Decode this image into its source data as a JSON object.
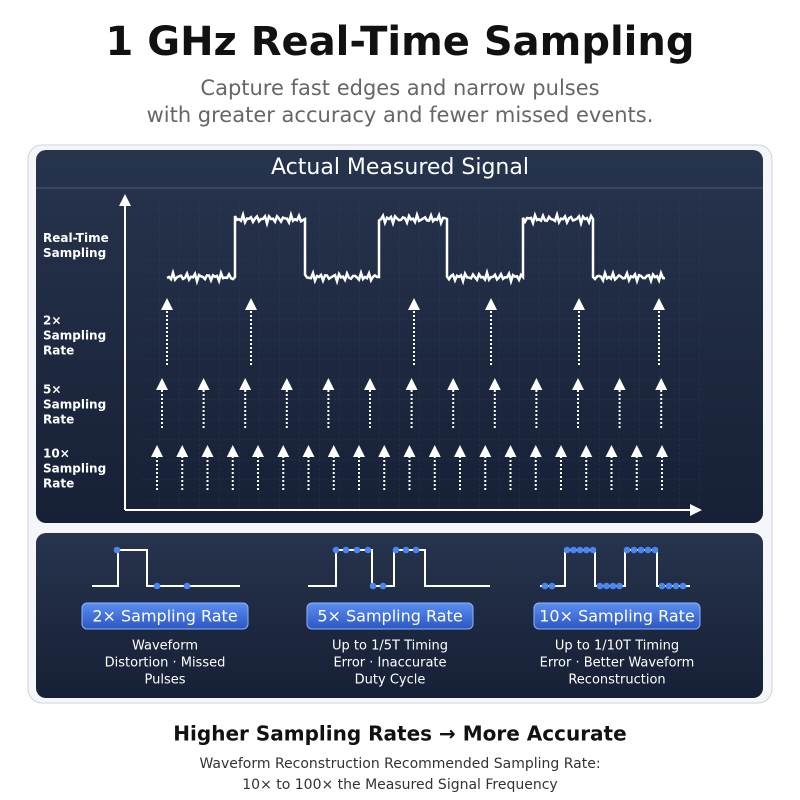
{
  "header": {
    "title": "1 GHz Real-Time Sampling",
    "subtitle": [
      "Capture fast edges and narrow pulses",
      "with greater accuracy and fewer missed events."
    ]
  },
  "panel": {
    "title": "Actual Measured Signal",
    "rows": [
      [
        "Real-Time",
        "Sampling"
      ],
      [
        "2×",
        "Sampling",
        "Rate"
      ],
      [
        "5×",
        "Sampling",
        "Rate"
      ],
      [
        "10×",
        "Sampling",
        "Rate"
      ]
    ]
  },
  "cards": [
    {
      "badge": "2× Sampling Rate",
      "description": [
        "Waveform",
        "Distortion · Missed",
        "Pulses"
      ]
    },
    {
      "badge": "5× Sampling Rate",
      "description": [
        "Up to 1/5T Timing",
        "Error · Inaccurate",
        "Duty Cycle"
      ]
    },
    {
      "badge": "10× Sampling Rate",
      "description": [
        "Up to 1/10T Timing",
        "Error · Better Waveform",
        "Reconstruction"
      ]
    }
  ],
  "footer": {
    "title": "Higher Sampling Rates → More Accurate",
    "lines": [
      "Waveform Reconstruction Recommended Sampling Rate:",
      "10× to 100× the Measured Signal Frequency"
    ]
  }
}
